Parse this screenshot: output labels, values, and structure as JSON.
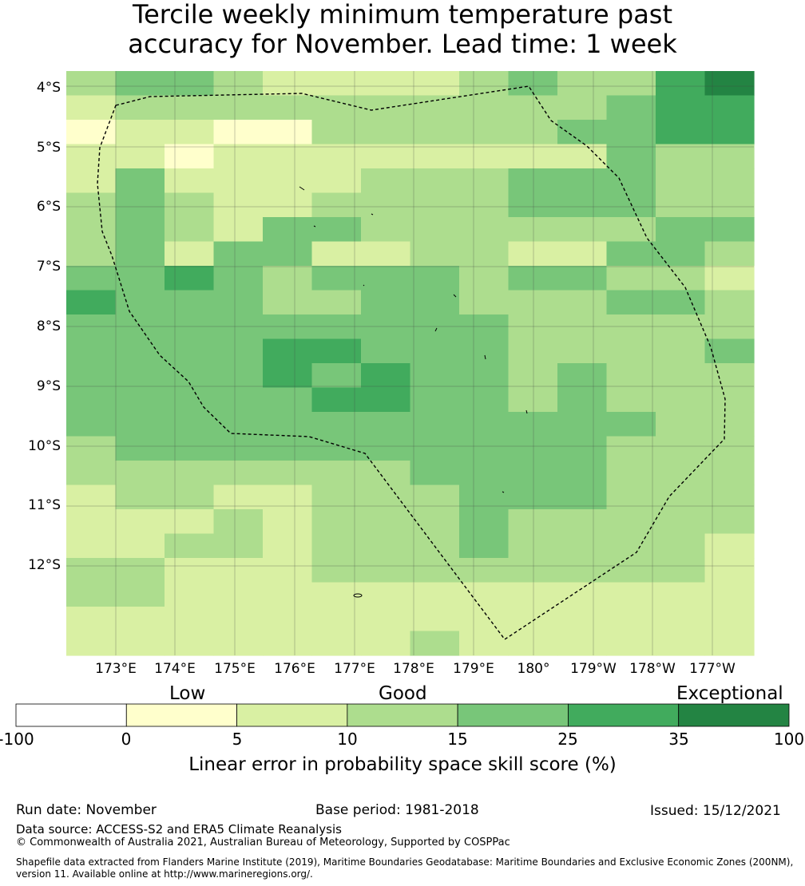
{
  "title": {
    "line1": "Tercile weekly minimum temperature past",
    "line2": "accuracy for November. Lead time: 1 week"
  },
  "axes": {
    "lat_labels": [
      "4°S",
      "5°S",
      "6°S",
      "7°S",
      "8°S",
      "9°S",
      "10°S",
      "11°S",
      "12°S"
    ],
    "lon_labels": [
      "173°E",
      "174°E",
      "175°E",
      "176°E",
      "177°E",
      "178°E",
      "179°E",
      "180°",
      "179°W",
      "178°W",
      "177°W"
    ]
  },
  "colorbar": {
    "categories": [
      "Low",
      "Good",
      "Exceptional"
    ],
    "ticks": [
      "-100",
      "0",
      "5",
      "10",
      "15",
      "25",
      "35",
      "100"
    ],
    "colors": [
      "#ffffff",
      "#ffffcc",
      "#d9f0a3",
      "#addd8e",
      "#78c679",
      "#41ab5d",
      "#238443"
    ],
    "label": "Linear error in probability space skill score (%)"
  },
  "footer": {
    "run_date": "Run date: November",
    "base_period": "Base period: 1981-2018",
    "issued": "Issued: 15/12/2021",
    "data_source": "Data source: ACCESS-S2 and ERA5 Climate Reanalysis",
    "copyright": "© Commonwealth of Australia 2021, Australian Bureau of Meteorology, Supported by COSPPac",
    "shapefile_line1": "Shapefile data extracted from Flanders Marine Institute (2019), Maritime Boundaries Geodatabase: Maritime Boundaries and Exclusive Economic Zones (200NM),",
    "shapefile_line2": "version 11. Available online at http://www.marineregions.org/."
  },
  "grid": {
    "rows": [
      "34432222343356",
      "23333333333455",
      "12211333334455",
      "22122222222433",
      "24222233344433",
      "34322333344433",
      "34324433333344",
      "34244223322443",
      "44543444344332",
      "54443344333443",
      "44444444433333",
      "44445544433334",
      "44445454434333",
      "44444554434333",
      "44444444444433",
      "34444444444333",
      "33333334444333",
      "23322333444333",
      "22232333433333",
      "22332333433332",
      "33222333333332",
      "33222222222222",
      "22222222222222",
      "22222223222222"
    ]
  }
}
